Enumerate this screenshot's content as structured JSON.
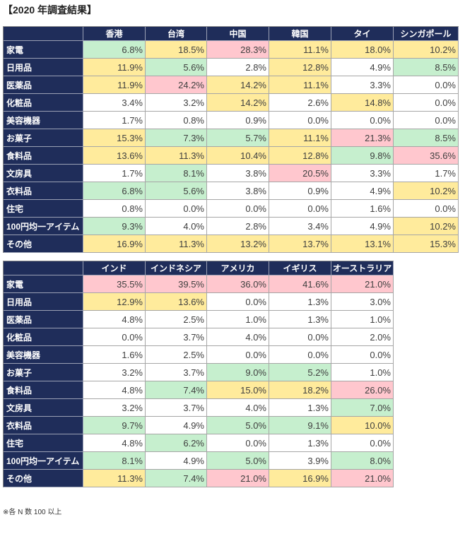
{
  "title": "【2020 年調査結果】",
  "colors": {
    "header_bg": "#1f2d5a"
  },
  "chart_data": [
    {
      "type": "table",
      "columns": [
        "香港",
        "台湾",
        "中国",
        "韓国",
        "タイ",
        "シンガポール"
      ],
      "rows": [
        {
          "label": "家電",
          "values": [
            "6.8%",
            "18.5%",
            "28.3%",
            "11.1%",
            "18.0%",
            "10.2%"
          ],
          "fills": [
            "#c6efce",
            "#ffeb9c",
            "#ffc7ce",
            "#ffeb9c",
            "#ffeb9c",
            "#ffeb9c"
          ]
        },
        {
          "label": "日用品",
          "values": [
            "11.9%",
            "5.6%",
            "2.8%",
            "12.8%",
            "4.9%",
            "8.5%"
          ],
          "fills": [
            "#ffeb9c",
            "#c6efce",
            "#ffffff",
            "#ffeb9c",
            "#ffffff",
            "#c6efce"
          ]
        },
        {
          "label": "医薬品",
          "values": [
            "11.9%",
            "24.2%",
            "14.2%",
            "11.1%",
            "3.3%",
            "0.0%"
          ],
          "fills": [
            "#ffeb9c",
            "#ffc7ce",
            "#ffeb9c",
            "#ffeb9c",
            "#ffffff",
            "#ffffff"
          ]
        },
        {
          "label": "化粧品",
          "values": [
            "3.4%",
            "3.2%",
            "14.2%",
            "2.6%",
            "14.8%",
            "0.0%"
          ],
          "fills": [
            "#ffffff",
            "#ffffff",
            "#ffeb9c",
            "#ffffff",
            "#ffeb9c",
            "#ffffff"
          ]
        },
        {
          "label": "美容機器",
          "values": [
            "1.7%",
            "0.8%",
            "0.9%",
            "0.0%",
            "0.0%",
            "0.0%"
          ],
          "fills": [
            "#ffffff",
            "#ffffff",
            "#ffffff",
            "#ffffff",
            "#ffffff",
            "#ffffff"
          ]
        },
        {
          "label": "お菓子",
          "values": [
            "15.3%",
            "7.3%",
            "5.7%",
            "11.1%",
            "21.3%",
            "8.5%"
          ],
          "fills": [
            "#ffeb9c",
            "#c6efce",
            "#c6efce",
            "#ffeb9c",
            "#ffc7ce",
            "#c6efce"
          ]
        },
        {
          "label": "食料品",
          "values": [
            "13.6%",
            "11.3%",
            "10.4%",
            "12.8%",
            "9.8%",
            "35.6%"
          ],
          "fills": [
            "#ffeb9c",
            "#ffeb9c",
            "#ffeb9c",
            "#ffeb9c",
            "#c6efce",
            "#ffc7ce"
          ]
        },
        {
          "label": "文房具",
          "values": [
            "1.7%",
            "8.1%",
            "3.8%",
            "20.5%",
            "3.3%",
            "1.7%"
          ],
          "fills": [
            "#ffffff",
            "#c6efce",
            "#ffffff",
            "#ffc7ce",
            "#ffffff",
            "#ffffff"
          ]
        },
        {
          "label": "衣料品",
          "values": [
            "6.8%",
            "5.6%",
            "3.8%",
            "0.9%",
            "4.9%",
            "10.2%"
          ],
          "fills": [
            "#c6efce",
            "#c6efce",
            "#ffffff",
            "#ffffff",
            "#ffffff",
            "#ffeb9c"
          ]
        },
        {
          "label": "住宅",
          "values": [
            "0.8%",
            "0.0%",
            "0.0%",
            "0.0%",
            "1.6%",
            "0.0%"
          ],
          "fills": [
            "#ffffff",
            "#ffffff",
            "#ffffff",
            "#ffffff",
            "#ffffff",
            "#ffffff"
          ]
        },
        {
          "label": "100円均一アイテム",
          "values": [
            "9.3%",
            "4.0%",
            "2.8%",
            "3.4%",
            "4.9%",
            "10.2%"
          ],
          "fills": [
            "#c6efce",
            "#ffffff",
            "#ffffff",
            "#ffffff",
            "#ffffff",
            "#ffeb9c"
          ]
        },
        {
          "label": "その他",
          "values": [
            "16.9%",
            "11.3%",
            "13.2%",
            "13.7%",
            "13.1%",
            "15.3%"
          ],
          "fills": [
            "#ffeb9c",
            "#ffeb9c",
            "#ffeb9c",
            "#ffeb9c",
            "#ffeb9c",
            "#ffeb9c"
          ]
        }
      ]
    },
    {
      "type": "table",
      "columns": [
        "インド",
        "インドネシア",
        "アメリカ",
        "イギリス",
        "オーストラリア"
      ],
      "rows": [
        {
          "label": "家電",
          "values": [
            "35.5%",
            "39.5%",
            "36.0%",
            "41.6%",
            "21.0%"
          ],
          "fills": [
            "#ffc7ce",
            "#ffc7ce",
            "#ffc7ce",
            "#ffc7ce",
            "#ffc7ce"
          ]
        },
        {
          "label": "日用品",
          "values": [
            "12.9%",
            "13.6%",
            "0.0%",
            "1.3%",
            "3.0%"
          ],
          "fills": [
            "#ffeb9c",
            "#ffeb9c",
            "#ffffff",
            "#ffffff",
            "#ffffff"
          ]
        },
        {
          "label": "医薬品",
          "values": [
            "4.8%",
            "2.5%",
            "1.0%",
            "1.3%",
            "1.0%"
          ],
          "fills": [
            "#ffffff",
            "#ffffff",
            "#ffffff",
            "#ffffff",
            "#ffffff"
          ]
        },
        {
          "label": "化粧品",
          "values": [
            "0.0%",
            "3.7%",
            "4.0%",
            "0.0%",
            "2.0%"
          ],
          "fills": [
            "#ffffff",
            "#ffffff",
            "#ffffff",
            "#ffffff",
            "#ffffff"
          ]
        },
        {
          "label": "美容機器",
          "values": [
            "1.6%",
            "2.5%",
            "0.0%",
            "0.0%",
            "0.0%"
          ],
          "fills": [
            "#ffffff",
            "#ffffff",
            "#ffffff",
            "#ffffff",
            "#ffffff"
          ]
        },
        {
          "label": "お菓子",
          "values": [
            "3.2%",
            "3.7%",
            "9.0%",
            "5.2%",
            "1.0%"
          ],
          "fills": [
            "#ffffff",
            "#ffffff",
            "#c6efce",
            "#c6efce",
            "#ffffff"
          ]
        },
        {
          "label": "食料品",
          "values": [
            "4.8%",
            "7.4%",
            "15.0%",
            "18.2%",
            "26.0%"
          ],
          "fills": [
            "#ffffff",
            "#c6efce",
            "#ffeb9c",
            "#ffeb9c",
            "#ffc7ce"
          ]
        },
        {
          "label": "文房具",
          "values": [
            "3.2%",
            "3.7%",
            "4.0%",
            "1.3%",
            "7.0%"
          ],
          "fills": [
            "#ffffff",
            "#ffffff",
            "#ffffff",
            "#ffffff",
            "#c6efce"
          ]
        },
        {
          "label": "衣料品",
          "values": [
            "9.7%",
            "4.9%",
            "5.0%",
            "9.1%",
            "10.0%"
          ],
          "fills": [
            "#c6efce",
            "#ffffff",
            "#c6efce",
            "#c6efce",
            "#ffeb9c"
          ]
        },
        {
          "label": "住宅",
          "values": [
            "4.8%",
            "6.2%",
            "0.0%",
            "1.3%",
            "0.0%"
          ],
          "fills": [
            "#ffffff",
            "#c6efce",
            "#ffffff",
            "#ffffff",
            "#ffffff"
          ]
        },
        {
          "label": "100円均一アイテム",
          "values": [
            "8.1%",
            "4.9%",
            "5.0%",
            "3.9%",
            "8.0%"
          ],
          "fills": [
            "#c6efce",
            "#ffffff",
            "#c6efce",
            "#ffffff",
            "#c6efce"
          ]
        },
        {
          "label": "その他",
          "values": [
            "11.3%",
            "7.4%",
            "21.0%",
            "16.9%",
            "21.0%"
          ],
          "fills": [
            "#ffeb9c",
            "#c6efce",
            "#ffc7ce",
            "#ffeb9c",
            "#ffc7ce"
          ]
        }
      ]
    }
  ],
  "footnote": "※各 N 数 100 以上"
}
